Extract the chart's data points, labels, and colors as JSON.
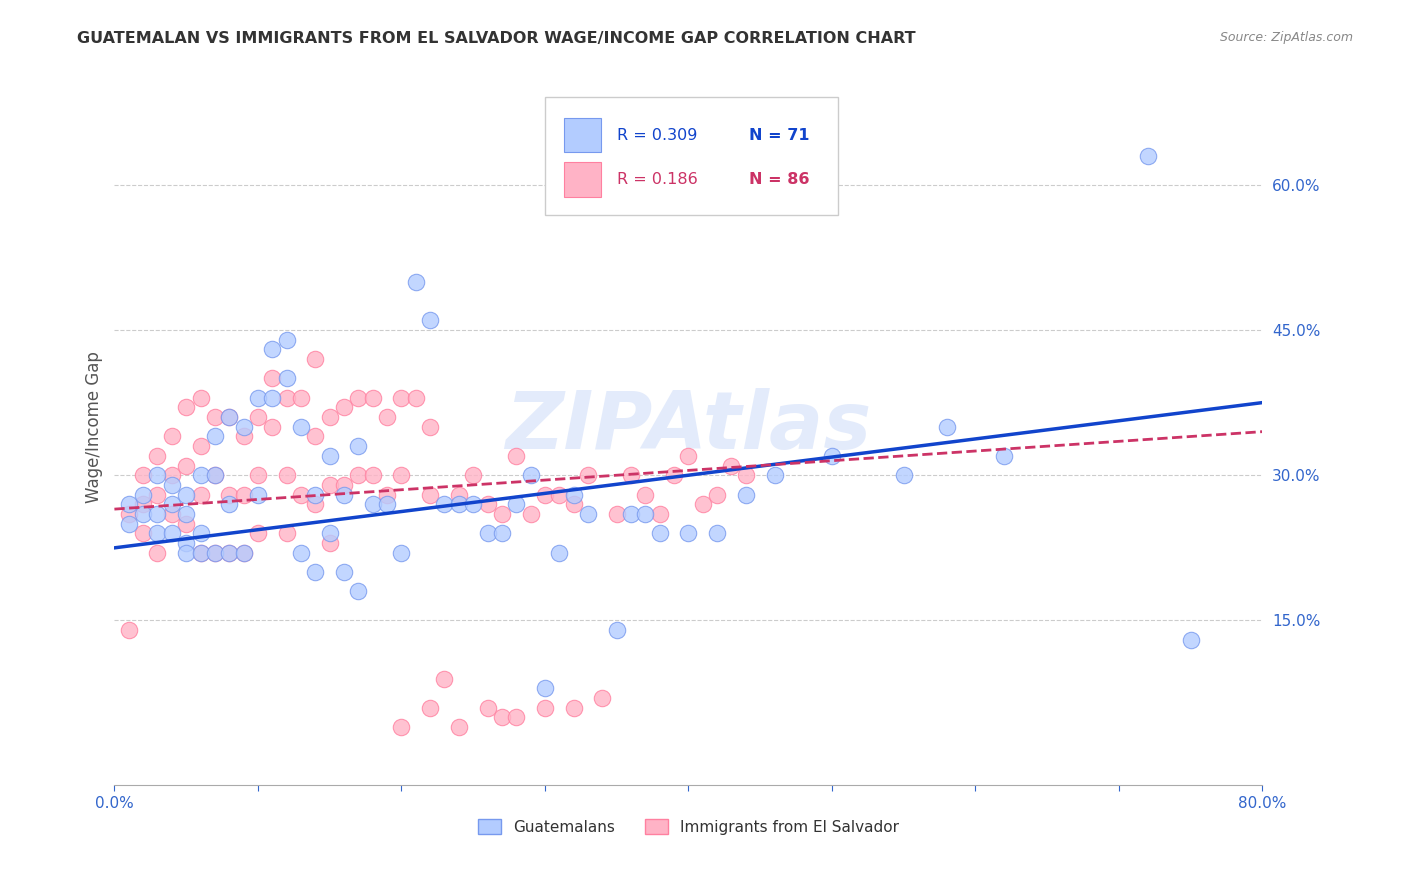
{
  "title": "GUATEMALAN VS IMMIGRANTS FROM EL SALVADOR WAGE/INCOME GAP CORRELATION CHART",
  "source": "Source: ZipAtlas.com",
  "ylabel": "Wage/Income Gap",
  "xlim": [
    0.0,
    0.8
  ],
  "ylim": [
    -0.02,
    0.72
  ],
  "yticks_right": [
    0.15,
    0.3,
    0.45,
    0.6
  ],
  "ytick_labels_right": [
    "15.0%",
    "30.0%",
    "45.0%",
    "60.0%"
  ],
  "background_color": "#ffffff",
  "grid_color": "#cccccc",
  "watermark": "ZIPAtlas",
  "legend_R1": "R = 0.309",
  "legend_N1": "N = 71",
  "legend_R2": "R = 0.186",
  "legend_N2": "N = 86",
  "label1": "Guatemalans",
  "label2": "Immigrants from El Salvador",
  "blue_x": [
    0.01,
    0.01,
    0.02,
    0.02,
    0.03,
    0.03,
    0.03,
    0.04,
    0.04,
    0.04,
    0.05,
    0.05,
    0.05,
    0.05,
    0.06,
    0.06,
    0.06,
    0.07,
    0.07,
    0.07,
    0.08,
    0.08,
    0.08,
    0.09,
    0.09,
    0.1,
    0.1,
    0.11,
    0.11,
    0.12,
    0.12,
    0.13,
    0.13,
    0.14,
    0.14,
    0.15,
    0.15,
    0.16,
    0.16,
    0.17,
    0.17,
    0.18,
    0.19,
    0.2,
    0.21,
    0.22,
    0.23,
    0.24,
    0.25,
    0.26,
    0.27,
    0.28,
    0.29,
    0.3,
    0.31,
    0.32,
    0.33,
    0.35,
    0.36,
    0.37,
    0.38,
    0.4,
    0.42,
    0.44,
    0.46,
    0.5,
    0.55,
    0.58,
    0.62,
    0.72,
    0.75
  ],
  "blue_y": [
    0.27,
    0.25,
    0.28,
    0.26,
    0.3,
    0.26,
    0.24,
    0.29,
    0.24,
    0.27,
    0.28,
    0.26,
    0.23,
    0.22,
    0.3,
    0.24,
    0.22,
    0.34,
    0.3,
    0.22,
    0.36,
    0.27,
    0.22,
    0.35,
    0.22,
    0.38,
    0.28,
    0.43,
    0.38,
    0.44,
    0.4,
    0.35,
    0.22,
    0.28,
    0.2,
    0.32,
    0.24,
    0.28,
    0.2,
    0.33,
    0.18,
    0.27,
    0.27,
    0.22,
    0.5,
    0.46,
    0.27,
    0.27,
    0.27,
    0.24,
    0.24,
    0.27,
    0.3,
    0.08,
    0.22,
    0.28,
    0.26,
    0.14,
    0.26,
    0.26,
    0.24,
    0.24,
    0.24,
    0.28,
    0.3,
    0.32,
    0.3,
    0.35,
    0.32,
    0.63,
    0.13
  ],
  "pink_x": [
    0.01,
    0.01,
    0.02,
    0.02,
    0.02,
    0.03,
    0.03,
    0.03,
    0.04,
    0.04,
    0.04,
    0.05,
    0.05,
    0.05,
    0.06,
    0.06,
    0.06,
    0.06,
    0.07,
    0.07,
    0.07,
    0.08,
    0.08,
    0.08,
    0.09,
    0.09,
    0.09,
    0.1,
    0.1,
    0.1,
    0.11,
    0.11,
    0.12,
    0.12,
    0.12,
    0.13,
    0.13,
    0.14,
    0.14,
    0.14,
    0.15,
    0.15,
    0.15,
    0.16,
    0.16,
    0.17,
    0.17,
    0.18,
    0.18,
    0.19,
    0.19,
    0.2,
    0.2,
    0.21,
    0.22,
    0.22,
    0.23,
    0.24,
    0.25,
    0.26,
    0.27,
    0.28,
    0.29,
    0.3,
    0.31,
    0.32,
    0.33,
    0.34,
    0.35,
    0.36,
    0.37,
    0.38,
    0.39,
    0.4,
    0.41,
    0.42,
    0.43,
    0.44,
    0.2,
    0.22,
    0.24,
    0.26,
    0.27,
    0.28,
    0.3,
    0.32
  ],
  "pink_y": [
    0.14,
    0.26,
    0.3,
    0.27,
    0.24,
    0.32,
    0.28,
    0.22,
    0.34,
    0.3,
    0.26,
    0.37,
    0.31,
    0.25,
    0.38,
    0.33,
    0.28,
    0.22,
    0.36,
    0.3,
    0.22,
    0.36,
    0.28,
    0.22,
    0.34,
    0.28,
    0.22,
    0.36,
    0.3,
    0.24,
    0.4,
    0.35,
    0.38,
    0.3,
    0.24,
    0.38,
    0.28,
    0.42,
    0.34,
    0.27,
    0.36,
    0.29,
    0.23,
    0.37,
    0.29,
    0.38,
    0.3,
    0.38,
    0.3,
    0.36,
    0.28,
    0.38,
    0.3,
    0.38,
    0.35,
    0.28,
    0.09,
    0.28,
    0.3,
    0.27,
    0.26,
    0.32,
    0.26,
    0.28,
    0.28,
    0.27,
    0.3,
    0.07,
    0.26,
    0.3,
    0.28,
    0.26,
    0.3,
    0.32,
    0.27,
    0.28,
    0.31,
    0.3,
    0.04,
    0.06,
    0.04,
    0.06,
    0.05,
    0.05,
    0.06,
    0.06
  ],
  "blue_line_x0": 0.0,
  "blue_line_x1": 0.8,
  "blue_line_y0": 0.225,
  "blue_line_y1": 0.375,
  "pink_line_y0": 0.265,
  "pink_line_y1": 0.345
}
